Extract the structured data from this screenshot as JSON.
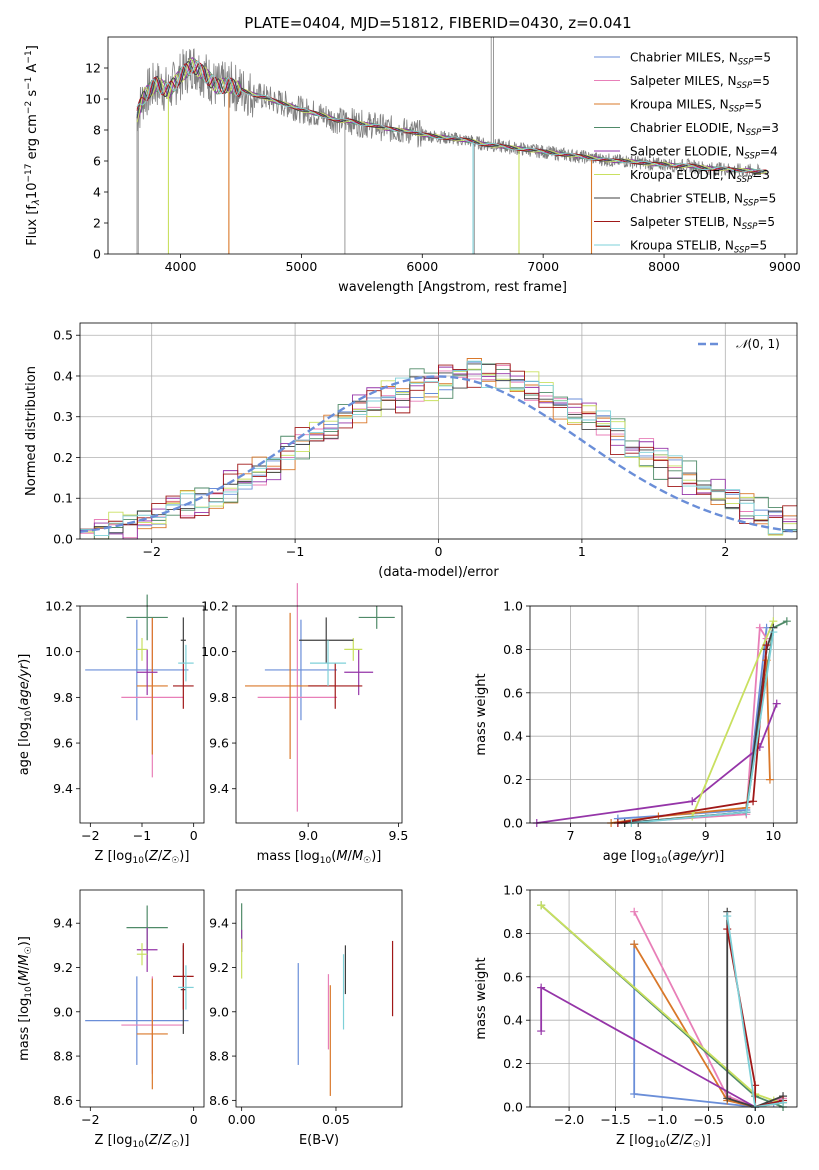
{
  "figure": {
    "title": "PLATE=0404, MJD=51812, FIBERID=0430, z=0.041"
  },
  "model_colors": {
    "Chabrier MILES": "#6a8ed8",
    "Salpeter MILES": "#e87fb8",
    "Kroupa MILES": "#d9782a",
    "Chabrier ELODIE": "#4f8a68",
    "Salpeter ELODIE": "#9535a8",
    "Kroupa ELODIE": "#c9e060",
    "Chabrier STELIB": "#404040",
    "Salpeter STELIB": "#a01818",
    "Kroupa STELIB": "#7ed0d8"
  },
  "chart_data": [
    {
      "type": "line",
      "id": "spectrum",
      "xlabel": "wavelength [Angstrom, rest frame]",
      "ylabel": "Flux [fλ10⁻¹⁷ erg cm⁻² s⁻¹ A⁻¹]",
      "xlim": [
        3400,
        9100
      ],
      "ylim": [
        0,
        14
      ],
      "xticks": [
        4000,
        5000,
        6000,
        7000,
        8000,
        9000
      ],
      "yticks": [
        0,
        2,
        4,
        6,
        8,
        10,
        12
      ],
      "grid": false,
      "legend_position": "top-right",
      "data_series": {
        "name": "",
        "color": "#808080",
        "x": [
          3640,
          3700,
          3800,
          3900,
          4000,
          4100,
          4200,
          4300,
          4400,
          4500,
          4600,
          4700,
          4800,
          4900,
          5000,
          5100,
          5200,
          5300,
          5400,
          5500,
          5600,
          5700,
          5800,
          5900,
          6000,
          6100,
          6200,
          6300,
          6400,
          6500,
          6600,
          6700,
          6800,
          6900,
          7000,
          7100,
          7200,
          7300,
          7400,
          7500,
          7600,
          7700,
          7800,
          7900,
          8000,
          8100,
          8200,
          8300,
          8400,
          8500,
          8600,
          8700,
          8800
        ],
        "y": [
          9.0,
          10.2,
          11.0,
          10.5,
          11.5,
          12.2,
          11.6,
          10.8,
          10.9,
          10.6,
          10.3,
          10.1,
          9.8,
          9.6,
          9.3,
          9.1,
          8.9,
          8.6,
          8.6,
          8.4,
          8.3,
          8.1,
          8.0,
          7.9,
          7.7,
          7.6,
          7.5,
          7.4,
          7.3,
          7.1,
          7.0,
          6.9,
          6.8,
          6.7,
          6.6,
          6.5,
          6.4,
          6.3,
          6.2,
          6.1,
          6.0,
          6.0,
          5.9,
          5.8,
          5.8,
          5.7,
          5.7,
          5.6,
          5.5,
          5.5,
          5.4,
          5.4,
          5.3
        ]
      },
      "series": [
        {
          "name": "Chabrier MILES, N_SSP=5",
          "dropouts": []
        },
        {
          "name": "Salpeter MILES, N_SSP=5",
          "dropouts": []
        },
        {
          "name": "Kroupa MILES, N_SSP=5",
          "dropouts": [
            4400,
            7400
          ]
        },
        {
          "name": "Chabrier ELODIE, N_SSP=3",
          "dropouts": []
        },
        {
          "name": "Salpeter ELODIE, N_SSP=4",
          "dropouts": []
        },
        {
          "name": "Kroupa ELODIE, N_SSP=3",
          "dropouts": [
            3900,
            6800
          ]
        },
        {
          "name": "Chabrier STELIB, N_SSP=5",
          "dropouts": []
        },
        {
          "name": "Salpeter STELIB, N_SSP=5",
          "dropouts": []
        },
        {
          "name": "Kroupa STELIB, N_SSP=5",
          "dropouts": [
            6420
          ]
        }
      ]
    },
    {
      "type": "histogram",
      "id": "residuals",
      "xlabel": "(data-model)/error",
      "ylabel": "Normed distribution",
      "xlim": [
        -2.5,
        2.5
      ],
      "ylim": [
        0,
        0.53
      ],
      "xticks": [
        -2,
        -1,
        0,
        1,
        2
      ],
      "yticks": [
        0.0,
        0.1,
        0.2,
        0.3,
        0.4,
        0.5
      ],
      "grid": true,
      "legend_position": "top-right",
      "bin_width": 0.1,
      "bin_start": -2.5,
      "reference_curve": {
        "name": "𝒩(0, 1)",
        "color": "#6a8ed8",
        "mean": 0,
        "sigma": 1,
        "style": "dashed"
      },
      "envelope": [
        0.02,
        0.02,
        0.03,
        0.04,
        0.05,
        0.06,
        0.07,
        0.08,
        0.09,
        0.1,
        0.12,
        0.14,
        0.16,
        0.18,
        0.21,
        0.23,
        0.25,
        0.27,
        0.3,
        0.32,
        0.33,
        0.35,
        0.36,
        0.37,
        0.38,
        0.39,
        0.4,
        0.41,
        0.4,
        0.39,
        0.38,
        0.37,
        0.35,
        0.33,
        0.32,
        0.3,
        0.28,
        0.26,
        0.23,
        0.21,
        0.19,
        0.17,
        0.15,
        0.13,
        0.11,
        0.09,
        0.08,
        0.06,
        0.05,
        0.04
      ]
    },
    {
      "type": "scatter",
      "id": "age_vs_metallicity",
      "xlabel": "Z [log₁₀(Z/Z☉)]",
      "ylabel": "age  [log₁₀(age/yr)]",
      "xlim": [
        -2.2,
        0.2
      ],
      "ylim": [
        9.25,
        10.2
      ],
      "xticks": [
        -2,
        -1,
        0
      ],
      "yticks": [
        9.4,
        9.6,
        9.8,
        10.0,
        10.2
      ],
      "grid": false,
      "points": [
        {
          "model": "Chabrier MILES",
          "x": -1.1,
          "xerr": 1.0,
          "y": 9.92,
          "yerr": 0.22
        },
        {
          "model": "Salpeter MILES",
          "x": -0.8,
          "xerr": 0.6,
          "y": 9.8,
          "yerr": 0.35
        },
        {
          "model": "Kroupa MILES",
          "x": -0.8,
          "xerr": 0.3,
          "y": 9.85,
          "yerr": 0.3
        },
        {
          "model": "Chabrier ELODIE",
          "x": -0.9,
          "xerr": 0.4,
          "y": 10.15,
          "yerr": 0.1
        },
        {
          "model": "Salpeter ELODIE",
          "x": -0.9,
          "xerr": 0.2,
          "y": 9.91,
          "yerr": 0.1
        },
        {
          "model": "Kroupa ELODIE",
          "x": -1.0,
          "xerr": 0.1,
          "y": 10.01,
          "yerr": 0.05
        },
        {
          "model": "Chabrier STELIB",
          "x": -0.2,
          "xerr": 0.05,
          "y": 10.05,
          "yerr": 0.1
        },
        {
          "model": "Salpeter STELIB",
          "x": -0.2,
          "xerr": 0.2,
          "y": 9.85,
          "yerr": 0.1
        },
        {
          "model": "Kroupa STELIB",
          "x": -0.15,
          "xerr": 0.15,
          "y": 9.95,
          "yerr": 0.08
        }
      ]
    },
    {
      "type": "scatter",
      "id": "age_vs_mass",
      "xlabel": "mass [log₁₀(M/M☉)]",
      "ylabel": "",
      "xlim": [
        8.6,
        9.52
      ],
      "ylim": [
        9.25,
        10.2
      ],
      "xticks": [
        9.0,
        9.5
      ],
      "yticks": [
        9.4,
        9.6,
        9.8,
        10.0,
        10.2
      ],
      "grid": false,
      "points": [
        {
          "model": "Chabrier MILES",
          "x": 8.96,
          "xerr": 0.2,
          "y": 9.92,
          "yerr": 0.22
        },
        {
          "model": "Salpeter MILES",
          "x": 8.94,
          "xerr": 0.22,
          "y": 9.8,
          "yerr": 0.5
        },
        {
          "model": "Kroupa MILES",
          "x": 8.9,
          "xerr": 0.25,
          "y": 9.85,
          "yerr": 0.32
        },
        {
          "model": "Chabrier ELODIE",
          "x": 9.38,
          "xerr": 0.1,
          "y": 10.15,
          "yerr": 0.05
        },
        {
          "model": "Salpeter ELODIE",
          "x": 9.28,
          "xerr": 0.08,
          "y": 9.91,
          "yerr": 0.1
        },
        {
          "model": "Kroupa ELODIE",
          "x": 9.25,
          "xerr": 0.05,
          "y": 10.01,
          "yerr": 0.05
        },
        {
          "model": "Chabrier STELIB",
          "x": 9.1,
          "xerr": 0.15,
          "y": 10.05,
          "yerr": 0.1
        },
        {
          "model": "Salpeter STELIB",
          "x": 9.15,
          "xerr": 0.15,
          "y": 9.85,
          "yerr": 0.1
        },
        {
          "model": "Kroupa STELIB",
          "x": 9.11,
          "xerr": 0.1,
          "y": 9.95,
          "yerr": 0.1
        }
      ]
    },
    {
      "type": "line",
      "id": "mass_weight_vs_age",
      "xlabel": "age  [log₁₀(age/yr)]",
      "ylabel": "mass weight",
      "xlim": [
        6.4,
        10.35
      ],
      "ylim": [
        0,
        1
      ],
      "xticks": [
        7,
        8,
        9,
        10
      ],
      "yticks": [
        0.0,
        0.2,
        0.4,
        0.6,
        0.8,
        1.0
      ],
      "grid": true,
      "series": [
        {
          "model": "Chabrier MILES",
          "x": [
            7.7,
            9.6,
            9.9
          ],
          "y": [
            0.02,
            0.06,
            0.9
          ]
        },
        {
          "model": "Salpeter MILES",
          "x": [
            7.7,
            9.6,
            9.8,
            9.9
          ],
          "y": [
            0.0,
            0.04,
            0.9,
            0.85
          ]
        },
        {
          "model": "Kroupa MILES",
          "x": [
            7.6,
            8.3,
            9.6,
            9.9,
            9.95
          ],
          "y": [
            0.0,
            0.03,
            0.07,
            0.75,
            0.2
          ]
        },
        {
          "model": "Chabrier ELODIE",
          "x": [
            7.8,
            9.6,
            10.0,
            10.2
          ],
          "y": [
            0.0,
            0.05,
            0.9,
            0.93
          ]
        },
        {
          "model": "Salpeter ELODIE",
          "x": [
            6.5,
            8.8,
            9.8,
            10.05
          ],
          "y": [
            0.0,
            0.1,
            0.35,
            0.55
          ]
        },
        {
          "model": "Kroupa ELODIE",
          "x": [
            7.9,
            8.8,
            10.0
          ],
          "y": [
            0.0,
            0.03,
            0.93
          ]
        },
        {
          "model": "Chabrier STELIB",
          "x": [
            7.8,
            9.6,
            9.9,
            10.0
          ],
          "y": [
            0.0,
            0.05,
            0.8,
            0.9
          ]
        },
        {
          "model": "Salpeter STELIB",
          "x": [
            7.7,
            9.7,
            9.9
          ],
          "y": [
            0.0,
            0.1,
            0.82
          ]
        },
        {
          "model": "Kroupa STELIB",
          "x": [
            7.9,
            9.6,
            10.0
          ],
          "y": [
            0.0,
            0.05,
            0.88
          ]
        }
      ]
    },
    {
      "type": "scatter",
      "id": "mass_vs_metallicity",
      "xlabel": "Z [log₁₀(Z/Z☉)]",
      "ylabel": "mass [log₁₀(M/M☉)]",
      "xlim": [
        -2.2,
        0.2
      ],
      "ylim": [
        8.57,
        9.55
      ],
      "xticks": [
        -2,
        0
      ],
      "yticks": [
        8.6,
        8.8,
        9.0,
        9.2,
        9.4
      ],
      "grid": false,
      "points": [
        {
          "model": "Chabrier MILES",
          "x": -1.1,
          "xerr": 1.0,
          "y": 8.96,
          "yerr": 0.2
        },
        {
          "model": "Salpeter MILES",
          "x": -0.8,
          "xerr": 0.6,
          "y": 8.94,
          "yerr": 0.22
        },
        {
          "model": "Kroupa MILES",
          "x": -0.8,
          "xerr": 0.3,
          "y": 8.9,
          "yerr": 0.25
        },
        {
          "model": "Chabrier ELODIE",
          "x": -0.9,
          "xerr": 0.4,
          "y": 9.38,
          "yerr": 0.1
        },
        {
          "model": "Salpeter ELODIE",
          "x": -0.9,
          "xerr": 0.2,
          "y": 9.28,
          "yerr": 0.1
        },
        {
          "model": "Kroupa ELODIE",
          "x": -1.0,
          "xerr": 0.1,
          "y": 9.26,
          "yerr": 0.05
        },
        {
          "model": "Chabrier STELIB",
          "x": -0.2,
          "xerr": 0.05,
          "y": 9.1,
          "yerr": 0.2
        },
        {
          "model": "Salpeter STELIB",
          "x": -0.2,
          "xerr": 0.2,
          "y": 9.16,
          "yerr": 0.15
        },
        {
          "model": "Kroupa STELIB",
          "x": -0.15,
          "xerr": 0.15,
          "y": 9.11,
          "yerr": 0.1
        }
      ]
    },
    {
      "type": "scatter",
      "id": "mass_vs_ebv",
      "xlabel": "E(B-V)",
      "ylabel": "",
      "xlim": [
        -0.003,
        0.085
      ],
      "ylim": [
        8.57,
        9.55
      ],
      "xticks": [
        0.0,
        0.05
      ],
      "yticks": [
        8.6,
        8.8,
        9.0,
        9.2,
        9.4
      ],
      "grid": false,
      "points": [
        {
          "model": "Chabrier MILES",
          "x": 0.03,
          "y": 8.99,
          "yerr": 0.23
        },
        {
          "model": "Salpeter MILES",
          "x": 0.046,
          "y": 9.0,
          "yerr": 0.17
        },
        {
          "model": "Kroupa MILES",
          "x": 0.047,
          "y": 8.87,
          "yerr": 0.25
        },
        {
          "model": "Chabrier ELODIE",
          "x": 0.0,
          "y": 9.38,
          "yerr": 0.11
        },
        {
          "model": "Salpeter ELODIE",
          "x": 0.0,
          "y": 9.32,
          "yerr": 0.05
        },
        {
          "model": "Kroupa ELODIE",
          "x": 0.0,
          "y": 9.24,
          "yerr": 0.09
        },
        {
          "model": "Chabrier STELIB",
          "x": 0.055,
          "y": 9.19,
          "yerr": 0.11
        },
        {
          "model": "Salpeter STELIB",
          "x": 0.08,
          "y": 9.15,
          "yerr": 0.17
        },
        {
          "model": "Kroupa STELIB",
          "x": 0.054,
          "y": 9.09,
          "yerr": 0.17
        }
      ]
    },
    {
      "type": "line",
      "id": "mass_weight_vs_metallicity",
      "xlabel": "Z [log₁₀(Z/Z☉)]",
      "ylabel": "mass weight",
      "xlim": [
        -2.42,
        0.45
      ],
      "ylim": [
        0,
        1
      ],
      "xticks": [
        -2.0,
        -1.5,
        -1.0,
        -0.5,
        0.0
      ],
      "yticks": [
        0.0,
        0.2,
        0.4,
        0.6,
        0.8,
        1.0
      ],
      "grid": true,
      "series": [
        {
          "model": "Chabrier MILES",
          "x": [
            -1.3,
            -1.3,
            0.0,
            0.2
          ],
          "y": [
            0.75,
            0.06,
            0.0,
            0.02
          ]
        },
        {
          "model": "Salpeter MILES",
          "x": [
            -1.3,
            -0.3,
            0.0,
            0.3
          ],
          "y": [
            0.9,
            0.05,
            0.0,
            0.04
          ]
        },
        {
          "model": "Kroupa MILES",
          "x": [
            -1.3,
            -0.3,
            0.0,
            0.3
          ],
          "y": [
            0.75,
            0.03,
            0.0,
            0.02
          ]
        },
        {
          "model": "Chabrier ELODIE",
          "x": [
            -2.3,
            0.0,
            0.3
          ],
          "y": [
            0.93,
            0.05,
            0.0
          ]
        },
        {
          "model": "Salpeter ELODIE",
          "x": [
            -2.3,
            -2.3,
            0.0
          ],
          "y": [
            0.35,
            0.55,
            0.0
          ]
        },
        {
          "model": "Kroupa ELODIE",
          "x": [
            -2.3,
            0.0,
            0.2
          ],
          "y": [
            0.93,
            0.06,
            0.03
          ]
        },
        {
          "model": "Chabrier STELIB",
          "x": [
            -0.3,
            -0.3,
            0.0,
            0.3
          ],
          "y": [
            0.9,
            0.04,
            0.0,
            0.05
          ]
        },
        {
          "model": "Salpeter STELIB",
          "x": [
            -0.3,
            0.0,
            0.0,
            0.3
          ],
          "y": [
            0.82,
            0.1,
            0.0,
            0.03
          ]
        },
        {
          "model": "Kroupa STELIB",
          "x": [
            -0.3,
            0.0,
            0.3
          ],
          "y": [
            0.88,
            0.0,
            0.02
          ]
        }
      ]
    }
  ]
}
